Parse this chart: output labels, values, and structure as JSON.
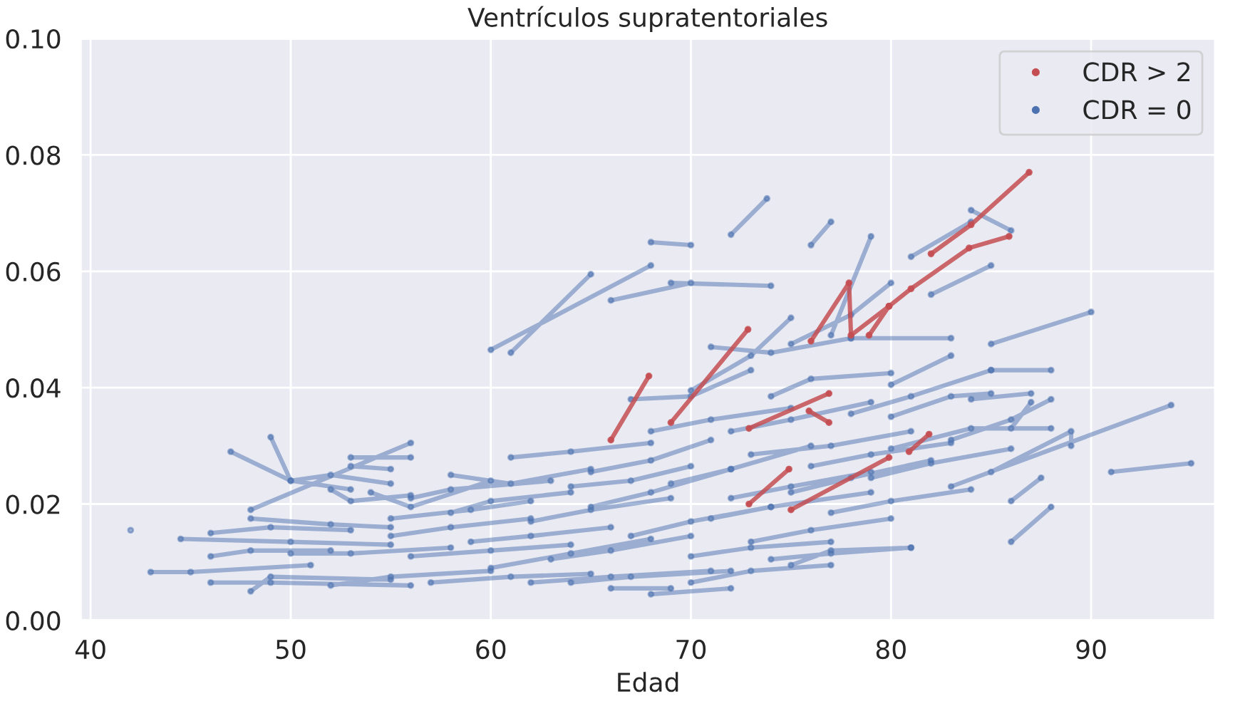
{
  "chart_data": {
    "type": "line",
    "title": "Ventrículos supratentoriales",
    "xlabel": "Edad",
    "xlim": [
      39.5,
      96.2
    ],
    "ylim": [
      0,
      0.1
    ],
    "xticks": [
      40,
      50,
      60,
      70,
      80,
      90
    ],
    "yticks": [
      {
        "value": 0,
        "label": "0.00"
      },
      {
        "value": 0.02,
        "label": "0.02"
      },
      {
        "value": 0.04,
        "label": "0.04"
      },
      {
        "value": 0.06,
        "label": "0.06"
      },
      {
        "value": 0.08,
        "label": "0.08"
      },
      {
        "value": 0.1,
        "label": "0.10"
      }
    ],
    "grid": true,
    "legend": "top right",
    "marker": "circle",
    "line_style": "solid",
    "series": [
      {
        "name": "CDR = 0",
        "color": "#4c72b0",
        "x": [
          42,
          null,
          43,
          45,
          51,
          null,
          44.5,
          50,
          55,
          null,
          46,
          49,
          56,
          null,
          46,
          48,
          52,
          null,
          46,
          49,
          53,
          null,
          47,
          50,
          53,
          null,
          49,
          50,
          52,
          55,
          null,
          48,
          56,
          null,
          48,
          49,
          55,
          null,
          48,
          52,
          55,
          null,
          50,
          53,
          58,
          null,
          52,
          53,
          56,
          null,
          53,
          56,
          null,
          53,
          55,
          null,
          54,
          56,
          60,
          null,
          52,
          55,
          60,
          null,
          55,
          58,
          62,
          null,
          56,
          58,
          63,
          null,
          56,
          60,
          64,
          null,
          57,
          61,
          65,
          null,
          58,
          60,
          64,
          null,
          58,
          61,
          65,
          null,
          59,
          62,
          66,
          null,
          60,
          68,
          null,
          61,
          65,
          null,
          61,
          64,
          68,
          null,
          60,
          64,
          68,
          null,
          62,
          65,
          69,
          null,
          63,
          66,
          70,
          null,
          64,
          67,
          72,
          null,
          65,
          68,
          72,
          null,
          65,
          68,
          71,
          null,
          66,
          70,
          null,
          66,
          69,
          null,
          67,
          70,
          74,
          null,
          67,
          70,
          73,
          null,
          68,
          70,
          null,
          68,
          72,
          null,
          68,
          71,
          75,
          null,
          69,
          74,
          null,
          69,
          72,
          76,
          null,
          70,
          73,
          77,
          null,
          70,
          73,
          75,
          null,
          70,
          73,
          77,
          null,
          71,
          74,
          78,
          null,
          71,
          74,
          79,
          null,
          72,
          73.8,
          null,
          72,
          75,
          79,
          null,
          73,
          76,
          80,
          null,
          73,
          77,
          81,
          null,
          74,
          77,
          81,
          null,
          74,
          76,
          80,
          null,
          75,
          78,
          82,
          null,
          75,
          78,
          80,
          null,
          76,
          77,
          null,
          76,
          79,
          83,
          null,
          77,
          79,
          null,
          77,
          80,
          84,
          null,
          78,
          81,
          85,
          null,
          78,
          83,
          null,
          79,
          82,
          86,
          null,
          80,
          83,
          null,
          80,
          84,
          88,
          null,
          81,
          84,
          null,
          82,
          85,
          null,
          83,
          94,
          null,
          84,
          86,
          null,
          84,
          87,
          null,
          85,
          90,
          null,
          85,
          88,
          null,
          85,
          89,
          89,
          null,
          86,
          88,
          null,
          86,
          87.5,
          null,
          86,
          87,
          null,
          91,
          95,
          null,
          75,
          77,
          81,
          null,
          62,
          66,
          71,
          null,
          55,
          59,
          62,
          null,
          64,
          67,
          70,
          null,
          72,
          75,
          79,
          null,
          80,
          83,
          85,
          null,
          83,
          86,
          88
        ],
        "values": [
          0.0155,
          null,
          0.0083,
          0.0083,
          0.0095,
          null,
          0.014,
          0.0135,
          0.013,
          null,
          0.0065,
          0.0065,
          0.006,
          null,
          0.011,
          0.012,
          0.012,
          null,
          0.015,
          0.016,
          0.0155,
          null,
          0.029,
          0.024,
          0.0225,
          null,
          0.0315,
          0.024,
          0.025,
          0.0235,
          null,
          0.019,
          0.0305,
          null,
          0.005,
          0.0075,
          0.007,
          null,
          0.0175,
          0.0165,
          0.016,
          null,
          0.0115,
          0.0115,
          0.0125,
          null,
          0.0225,
          0.0205,
          0.0215,
          null,
          0.028,
          0.028,
          null,
          0.0265,
          0.026,
          null,
          0.022,
          0.0195,
          0.024,
          null,
          0.006,
          0.0075,
          0.0085,
          null,
          0.0145,
          0.016,
          0.0175,
          null,
          0.021,
          0.0225,
          0.024,
          null,
          0.011,
          0.012,
          0.013,
          null,
          0.0065,
          0.0075,
          0.008,
          null,
          0.0185,
          0.0205,
          0.022,
          null,
          0.025,
          0.0235,
          0.026,
          null,
          0.0135,
          0.0145,
          0.016,
          null,
          0.0465,
          0.061,
          null,
          0.046,
          0.0595,
          null,
          0.028,
          0.029,
          0.0305,
          null,
          0.009,
          0.0115,
          0.014,
          null,
          0.017,
          0.019,
          0.021,
          null,
          0.0105,
          0.012,
          0.0145,
          null,
          0.0065,
          0.0075,
          0.0085,
          null,
          0.0195,
          0.022,
          0.026,
          null,
          0.0255,
          0.0275,
          0.031,
          null,
          0.055,
          0.058,
          null,
          0.0055,
          0.0055,
          null,
          0.0145,
          0.017,
          0.0195,
          null,
          0.038,
          0.0385,
          0.043,
          null,
          0.065,
          0.0645,
          null,
          0.0045,
          0.0055,
          null,
          0.0325,
          0.0345,
          0.0365,
          null,
          0.058,
          0.0575,
          null,
          0.0235,
          0.026,
          0.03,
          null,
          0.011,
          0.0125,
          0.0135,
          null,
          0.0395,
          0.0455,
          0.052,
          null,
          0.0065,
          0.0085,
          0.0095,
          null,
          0.047,
          0.046,
          0.0485,
          null,
          0.0175,
          0.0195,
          0.022,
          null,
          0.0663,
          0.0725,
          null,
          0.0325,
          0.0345,
          0.0375,
          null,
          0.0135,
          0.0155,
          0.0175,
          null,
          0.0285,
          0.03,
          0.0325,
          null,
          0.0105,
          0.0115,
          0.0125,
          null,
          0.0385,
          0.0415,
          0.0425,
          null,
          0.022,
          0.0245,
          0.0275,
          null,
          0.0475,
          0.0525,
          0.058,
          null,
          0.0645,
          0.0685,
          null,
          0.0265,
          0.0285,
          0.0305,
          null,
          0.049,
          0.066,
          null,
          0.0185,
          0.0205,
          0.0225,
          null,
          0.0355,
          0.0385,
          0.043,
          null,
          0.0485,
          0.0485,
          null,
          0.0245,
          0.027,
          0.0295,
          null,
          0.0405,
          0.0455,
          null,
          0.0295,
          0.033,
          0.033,
          null,
          0.0625,
          0.0685,
          null,
          0.056,
          0.061,
          null,
          0.023,
          0.037,
          null,
          0.0705,
          0.067,
          null,
          0.038,
          0.039,
          null,
          0.0475,
          0.053,
          null,
          0.043,
          0.043,
          null,
          0.0255,
          0.0325,
          0.03,
          null,
          0.0135,
          0.0195,
          null,
          0.0205,
          0.0245,
          null,
          0.033,
          0.0375,
          null,
          0.0255,
          0.027,
          null,
          0.0095,
          0.012,
          0.0125,
          null,
          0.0065,
          0.0075,
          0.0085,
          null,
          0.0175,
          0.019,
          0.0205,
          null,
          0.023,
          0.024,
          0.0265,
          null,
          0.021,
          0.023,
          0.0255,
          null,
          0.035,
          0.0385,
          0.039,
          null,
          0.031,
          0.0345,
          0.038
        ]
      },
      {
        "name": "CDR > 2",
        "color": "#c44e52",
        "x": [
          66,
          67.9,
          null,
          69,
          72.85,
          null,
          72.9,
          74.9,
          null,
          72.9,
          76.9,
          null,
          75.9,
          76.9,
          null,
          75,
          79.9,
          null,
          80.9,
          81.9,
          null,
          76,
          77.9,
          78,
          79.9,
          81,
          83.9,
          85.9,
          null,
          78.9,
          79.9,
          null,
          82,
          84,
          86.9
        ],
        "values": [
          0.031,
          0.042,
          null,
          0.034,
          0.05,
          null,
          0.02,
          0.026,
          null,
          0.033,
          0.039,
          null,
          0.036,
          0.034,
          null,
          0.019,
          0.028,
          null,
          0.029,
          0.032,
          null,
          0.048,
          0.058,
          0.049,
          0.054,
          0.057,
          0.064,
          0.066,
          null,
          0.049,
          0.054,
          null,
          0.063,
          0.068,
          0.077
        ]
      }
    ]
  }
}
